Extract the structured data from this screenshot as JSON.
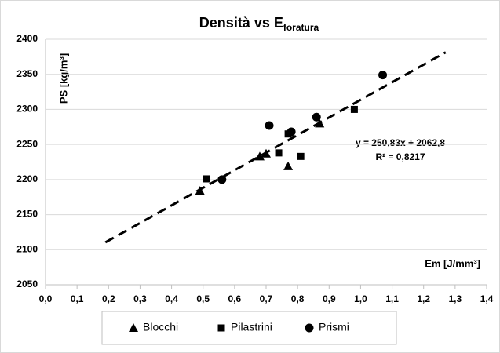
{
  "chart_data": {
    "type": "scatter",
    "title": "Densità vs E",
    "title_subscript": "foratura",
    "x_label": "Em [J/mm³]",
    "y_label": "PS [kg/m³]",
    "xlim": [
      0,
      1.4
    ],
    "xticks": [
      {
        "value": 0,
        "label": "0,0"
      },
      {
        "value": 0.1,
        "label": "0,1"
      },
      {
        "value": 0.2,
        "label": "0,2"
      },
      {
        "value": 0.3,
        "label": "0,3"
      },
      {
        "value": 0.4,
        "label": "0,4"
      },
      {
        "value": 0.5,
        "label": "0,5"
      },
      {
        "value": 0.6,
        "label": "0,6"
      },
      {
        "value": 0.7,
        "label": "0,7"
      },
      {
        "value": 0.8,
        "label": "0,8"
      },
      {
        "value": 0.9,
        "label": "0,9"
      },
      {
        "value": 1.0,
        "label": "1,0"
      },
      {
        "value": 1.1,
        "label": "1,1"
      },
      {
        "value": 1.2,
        "label": "1,2"
      },
      {
        "value": 1.3,
        "label": "1,3"
      },
      {
        "value": 1.4,
        "label": "1,4"
      }
    ],
    "ylim": [
      2050,
      2400
    ],
    "yticks": [
      2050,
      2100,
      2150,
      2200,
      2250,
      2300,
      2350,
      2400
    ],
    "grid": true,
    "legend": "bottom",
    "series": [
      {
        "name": "Blocchi",
        "color": "#000000",
        "marker": "triangle",
        "x": [
          0.49,
          0.68,
          0.7,
          0.77,
          0.87
        ],
        "values": [
          2184,
          2233,
          2237,
          2219,
          2280
        ]
      },
      {
        "name": "Pilastrini",
        "color": "#000000",
        "marker": "square",
        "x": [
          0.51,
          0.74,
          0.77,
          0.81,
          0.98
        ],
        "values": [
          2201,
          2238,
          2265,
          2233,
          2300
        ]
      },
      {
        "name": "Prismi",
        "color": "#000000",
        "marker": "circle",
        "x": [
          0.56,
          0.71,
          0.78,
          0.86,
          1.07
        ],
        "values": [
          2200,
          2277,
          2268,
          2289,
          2349
        ]
      }
    ],
    "trendline": {
      "slope": 250.83,
      "intercept": 2062.8,
      "x": [
        0.19,
        1.27
      ],
      "equation": "y = 250,83x + 2062,8",
      "r2": "R² = 0,8217"
    }
  }
}
